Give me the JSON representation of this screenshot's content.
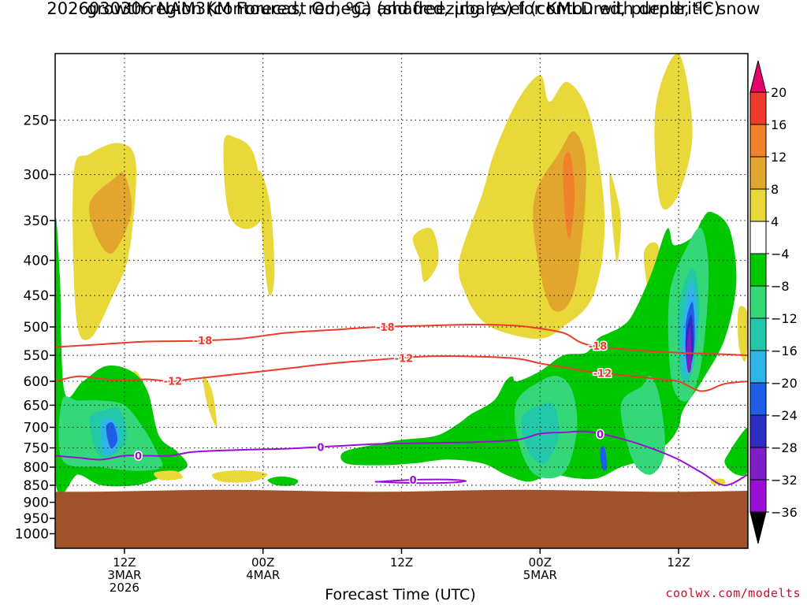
{
  "chart_data": {
    "type": "heatmap",
    "title_line1": "2026030306 NAM3KM Forecast Omega (shaded, μbar/s) for KMLD with dendritic snow",
    "title_line2": "growth region (contoured, red, ºC) and freezing level (contoured, purple, ºC)",
    "xlabel": "Forecast Time (UTC)",
    "credit": "coolwx.com/modelts",
    "y_axis": {
      "scale": "log",
      "orientation": "inverted",
      "range": [
        1050,
        200
      ],
      "ticks": [
        250,
        300,
        350,
        400,
        450,
        500,
        550,
        600,
        650,
        700,
        750,
        800,
        850,
        900,
        950,
        1000
      ]
    },
    "x_axis": {
      "range_hours": [
        6,
        36
      ],
      "ticks": [
        {
          "hour": 9,
          "line1": "12Z",
          "line2": "3MAR",
          "line3": "2026"
        },
        {
          "hour": 15,
          "line1": "00Z",
          "line2": "4MAR",
          "line3": ""
        },
        {
          "hour": 21,
          "line1": "12Z",
          "line2": "",
          "line3": ""
        },
        {
          "hour": 27,
          "line1": "00Z",
          "line2": "5MAR",
          "line3": ""
        },
        {
          "hour": 33,
          "line1": "12Z",
          "line2": "",
          "line3": ""
        }
      ]
    },
    "colorbar": {
      "labels": [
        "20",
        "16",
        "12",
        "8",
        "4",
        "−4",
        "−8",
        "−12",
        "−16",
        "−20",
        "−24",
        "−28",
        "−32",
        "−36"
      ],
      "colors": [
        "#e8006e",
        "#ef3b2c",
        "#f0822c",
        "#e2a52e",
        "#e8d83a",
        "#ffffff",
        "#00c800",
        "#35d878",
        "#22c8a8",
        "#2fb4ea",
        "#1f5fe8",
        "#2e2ec4",
        "#7e1ec6",
        "#9a0ed6",
        "#a8a8a8",
        "#000000"
      ]
    },
    "terrain_color": "#a0522d",
    "surface_pressure_hpa": 866,
    "contours": {
      "dgz_color": "#ef3b2c",
      "freezing_color": "#9a0ed6",
      "minus18": {
        "label": "-18",
        "hours": [
          6,
          8,
          10,
          12,
          14,
          16,
          18,
          20,
          22,
          24,
          25.5,
          26.5,
          28,
          29,
          31,
          33,
          35,
          36
        ],
        "pressure": [
          535,
          530,
          525,
          524,
          520,
          510,
          505,
          500,
          498,
          496,
          497,
          500,
          510,
          530,
          540,
          545,
          548,
          550
        ]
      },
      "minus12": {
        "label": "-12",
        "hours": [
          6,
          7,
          8,
          9,
          10,
          11,
          12,
          14,
          16,
          18,
          20,
          22,
          24,
          26,
          27,
          28,
          29,
          30,
          31,
          32,
          33,
          34,
          35,
          36
        ],
        "pressure": [
          600,
          590,
          595,
          598,
          596,
          600,
          595,
          585,
          575,
          565,
          558,
          552,
          552,
          556,
          565,
          572,
          580,
          585,
          590,
          595,
          600,
          620,
          605,
          600
        ]
      },
      "freezing": {
        "label": "0",
        "hours": [
          6,
          7,
          8,
          9,
          10,
          11,
          12,
          14,
          16,
          18,
          20,
          22,
          24,
          26,
          27,
          28,
          29,
          30,
          31,
          32,
          33,
          34,
          35,
          36
        ],
        "pressure": [
          770,
          775,
          780,
          770,
          770,
          770,
          760,
          755,
          752,
          746,
          740,
          738,
          736,
          730,
          715,
          712,
          710,
          720,
          735,
          755,
          780,
          815,
          850,
          820
        ]
      },
      "freezing_loop": {
        "label": "0",
        "hours": [
          20,
          21,
          22,
          23,
          23.8,
          23,
          22,
          21,
          20
        ],
        "pressure": [
          840,
          836,
          834,
          834,
          838,
          843,
          844,
          843,
          840
        ]
      }
    },
    "omega_regions": [
      {
        "value": 6,
        "hours": [
          6.8,
          7.5,
          8.8,
          9.5,
          9.2,
          8.5,
          7.5,
          6.9
        ],
        "pressure": [
          300,
          280,
          270,
          290,
          390,
          450,
          520,
          480
        ]
      },
      {
        "value": 10,
        "hours": [
          7.5,
          8.5,
          9.0,
          9.3,
          8.5,
          7.8
        ],
        "pressure": [
          330,
          305,
          300,
          340,
          390,
          370
        ]
      },
      {
        "value": 6,
        "hours": [
          9.4,
          9.8,
          10.0,
          9.7,
          9.5
        ],
        "pressure": [
          580,
          600,
          650,
          690,
          630
        ]
      },
      {
        "value": 6,
        "hours": [
          12.4,
          12.8,
          13.0,
          12.6
        ],
        "pressure": [
          590,
          620,
          700,
          650
        ]
      },
      {
        "value": 6,
        "hours": [
          13.3,
          13.8,
          14.6,
          15.0,
          14.3,
          13.5
        ],
        "pressure": [
          270,
          265,
          280,
          340,
          360,
          340
        ]
      },
      {
        "value": 6,
        "hours": [
          14.8,
          15.3,
          15.5,
          15.2
        ],
        "pressure": [
          300,
          330,
          420,
          440
        ]
      },
      {
        "value": 6,
        "hours": [
          12.8,
          13.5,
          14.5,
          15.2,
          14.5,
          13.2
        ],
        "pressure": [
          820,
          810,
          810,
          820,
          840,
          840
        ]
      },
      {
        "value": 6,
        "hours": [
          21.5,
          22.3,
          22.6,
          22.0,
          21.8
        ],
        "pressure": [
          370,
          360,
          400,
          430,
          400
        ]
      },
      {
        "value": 6,
        "hours": [
          23.5,
          24.5,
          25.0,
          26.0,
          27.0,
          27.4,
          28.2,
          29.2,
          29.8,
          29.3,
          28.0,
          27.0,
          25.5,
          24.5,
          23.8
        ],
        "pressure": [
          400,
          320,
          280,
          235,
          215,
          235,
          220,
          250,
          350,
          450,
          500,
          520,
          510,
          490,
          450
        ]
      },
      {
        "value": 10,
        "hours": [
          26.8,
          27.8,
          28.5,
          29.0,
          28.5,
          27.5,
          26.8
        ],
        "pressure": [
          320,
          280,
          260,
          300,
          440,
          470,
          380
        ]
      },
      {
        "value": 14,
        "hours": [
          28.0,
          28.3,
          28.5,
          28.3,
          28.1
        ],
        "pressure": [
          290,
          280,
          320,
          370,
          350
        ]
      },
      {
        "value": 6,
        "hours": [
          30.0,
          30.4,
          30.5,
          30.3
        ],
        "pressure": [
          300,
          330,
          360,
          400
        ]
      },
      {
        "value": 6,
        "hours": [
          32.0,
          33.0,
          33.6,
          33.0,
          32.2
        ],
        "pressure": [
          240,
          200,
          260,
          320,
          330
        ]
      },
      {
        "value": 6,
        "hours": [
          31.5,
          32.1,
          32.2,
          31.8
        ],
        "pressure": [
          390,
          380,
          440,
          460
        ]
      },
      {
        "value": 6,
        "hours": [
          35.6,
          36.0,
          35.9,
          35.6
        ],
        "pressure": [
          470,
          480,
          560,
          530
        ]
      },
      {
        "value": 6,
        "hours": [
          9.1,
          9.5,
          9.7,
          9.4
        ],
        "pressure": [
          615,
          620,
          660,
          665
        ]
      },
      {
        "value": -6,
        "hours": [
          6.0,
          6.2,
          6.4,
          7.2,
          8.2,
          9.3,
          10.0,
          10.5,
          11.3,
          11.7,
          10.5,
          9.5,
          8.0,
          7.0,
          6.0
        ],
        "pressure": [
          360,
          420,
          620,
          600,
          570,
          580,
          620,
          720,
          760,
          800,
          830,
          850,
          850,
          820,
          830
        ]
      },
      {
        "value": -10,
        "hours": [
          6.3,
          7.0,
          8.0,
          9.0,
          9.8,
          10.4,
          10.6,
          9.5,
          8.0,
          6.3
        ],
        "pressure": [
          640,
          640,
          640,
          650,
          700,
          760,
          800,
          810,
          800,
          780
        ]
      },
      {
        "value": -14,
        "hours": [
          7.5,
          8.2,
          8.8,
          9.1,
          8.7,
          7.9
        ],
        "pressure": [
          680,
          660,
          660,
          720,
          760,
          770
        ]
      },
      {
        "value": -18,
        "hours": [
          8.0,
          8.4,
          8.8,
          8.6,
          8.1
        ],
        "pressure": [
          690,
          680,
          710,
          760,
          760
        ]
      },
      {
        "value": -22,
        "hours": [
          8.2,
          8.5,
          8.7,
          8.4
        ],
        "pressure": [
          700,
          690,
          730,
          750
        ]
      },
      {
        "value": -6,
        "hours": [
          15.2,
          15.8,
          16.5,
          16.3,
          15.6
        ],
        "pressure": [
          835,
          825,
          835,
          850,
          850
        ]
      },
      {
        "value": -6,
        "hours": [
          18.5,
          20.0,
          21.0,
          22.5,
          23.5,
          24.0,
          25.0,
          25.5,
          25.8,
          26.0,
          27.0,
          28.0,
          29.0,
          29.5,
          30.0,
          30.5,
          31.0,
          31.8,
          32.5,
          32.8,
          33.6,
          34.0,
          34.4,
          35.2,
          35.5,
          35.0,
          34.0,
          33.2,
          33.0,
          32.5,
          31.5,
          30.5,
          29.5,
          28.5,
          27.5,
          26.5,
          25.5,
          24.5,
          23.0,
          21.5,
          20.0,
          18.6
        ],
        "pressure": [
          760,
          740,
          730,
          720,
          690,
          670,
          640,
          600,
          590,
          600,
          580,
          550,
          545,
          520,
          510,
          500,
          480,
          420,
          360,
          380,
          370,
          350,
          340,
          360,
          430,
          520,
          600,
          660,
          700,
          740,
          780,
          800,
          830,
          830,
          820,
          840,
          820,
          790,
          780,
          790,
          795,
          790
        ]
      },
      {
        "value": -10,
        "hours": [
          26.0,
          27.0,
          27.8,
          28.4,
          28.6,
          28.2,
          27.5,
          26.6,
          26.0
        ],
        "pressure": [
          640,
          600,
          590,
          620,
          700,
          800,
          830,
          810,
          720
        ]
      },
      {
        "value": -14,
        "hours": [
          26.2,
          27.0,
          27.6,
          27.8,
          27.2,
          26.5
        ],
        "pressure": [
          680,
          650,
          650,
          720,
          790,
          760
        ]
      },
      {
        "value": -10,
        "hours": [
          30.5,
          31.4,
          31.8,
          32.2,
          32.4,
          31.8,
          31.0
        ],
        "pressure": [
          650,
          610,
          590,
          640,
          760,
          820,
          780
        ]
      },
      {
        "value": -10,
        "hours": [
          32.6,
          33.4,
          34.0,
          34.3,
          34.0,
          33.4,
          32.7
        ],
        "pressure": [
          450,
          380,
          360,
          420,
          560,
          640,
          600
        ]
      },
      {
        "value": -14,
        "hours": [
          33.0,
          33.6,
          33.9,
          33.6,
          33.1
        ],
        "pressure": [
          470,
          410,
          470,
          580,
          590
        ]
      },
      {
        "value": -18,
        "hours": [
          33.2,
          33.6,
          33.8,
          33.5,
          33.2
        ],
        "pressure": [
          480,
          430,
          490,
          570,
          580
        ]
      },
      {
        "value": -22,
        "hours": [
          33.3,
          33.6,
          33.7,
          33.5
        ],
        "pressure": [
          500,
          460,
          520,
          570
        ]
      },
      {
        "value": -26,
        "hours": [
          33.3,
          33.55,
          33.65,
          33.4
        ],
        "pressure": [
          520,
          480,
          540,
          575
        ]
      },
      {
        "value": -30,
        "hours": [
          33.35,
          33.5,
          33.55,
          33.4
        ],
        "pressure": [
          540,
          500,
          570,
          580
        ]
      },
      {
        "value": -22,
        "hours": [
          29.6,
          29.8,
          29.9,
          29.7
        ],
        "pressure": [
          755,
          750,
          800,
          805
        ]
      },
      {
        "value": -6,
        "hours": [
          35.2,
          35.8,
          36.0,
          36.0,
          35.5,
          35.0
        ],
        "pressure": [
          760,
          710,
          710,
          810,
          820,
          790
        ]
      },
      {
        "value": 6,
        "hours": [
          10.3,
          11.2,
          11.5,
          10.6
        ],
        "pressure": [
          815,
          810,
          830,
          835
        ]
      },
      {
        "value": 6,
        "hours": [
          34.4,
          34.9,
          35.0,
          34.5
        ],
        "pressure": [
          835,
          832,
          845,
          848
        ]
      }
    ]
  }
}
